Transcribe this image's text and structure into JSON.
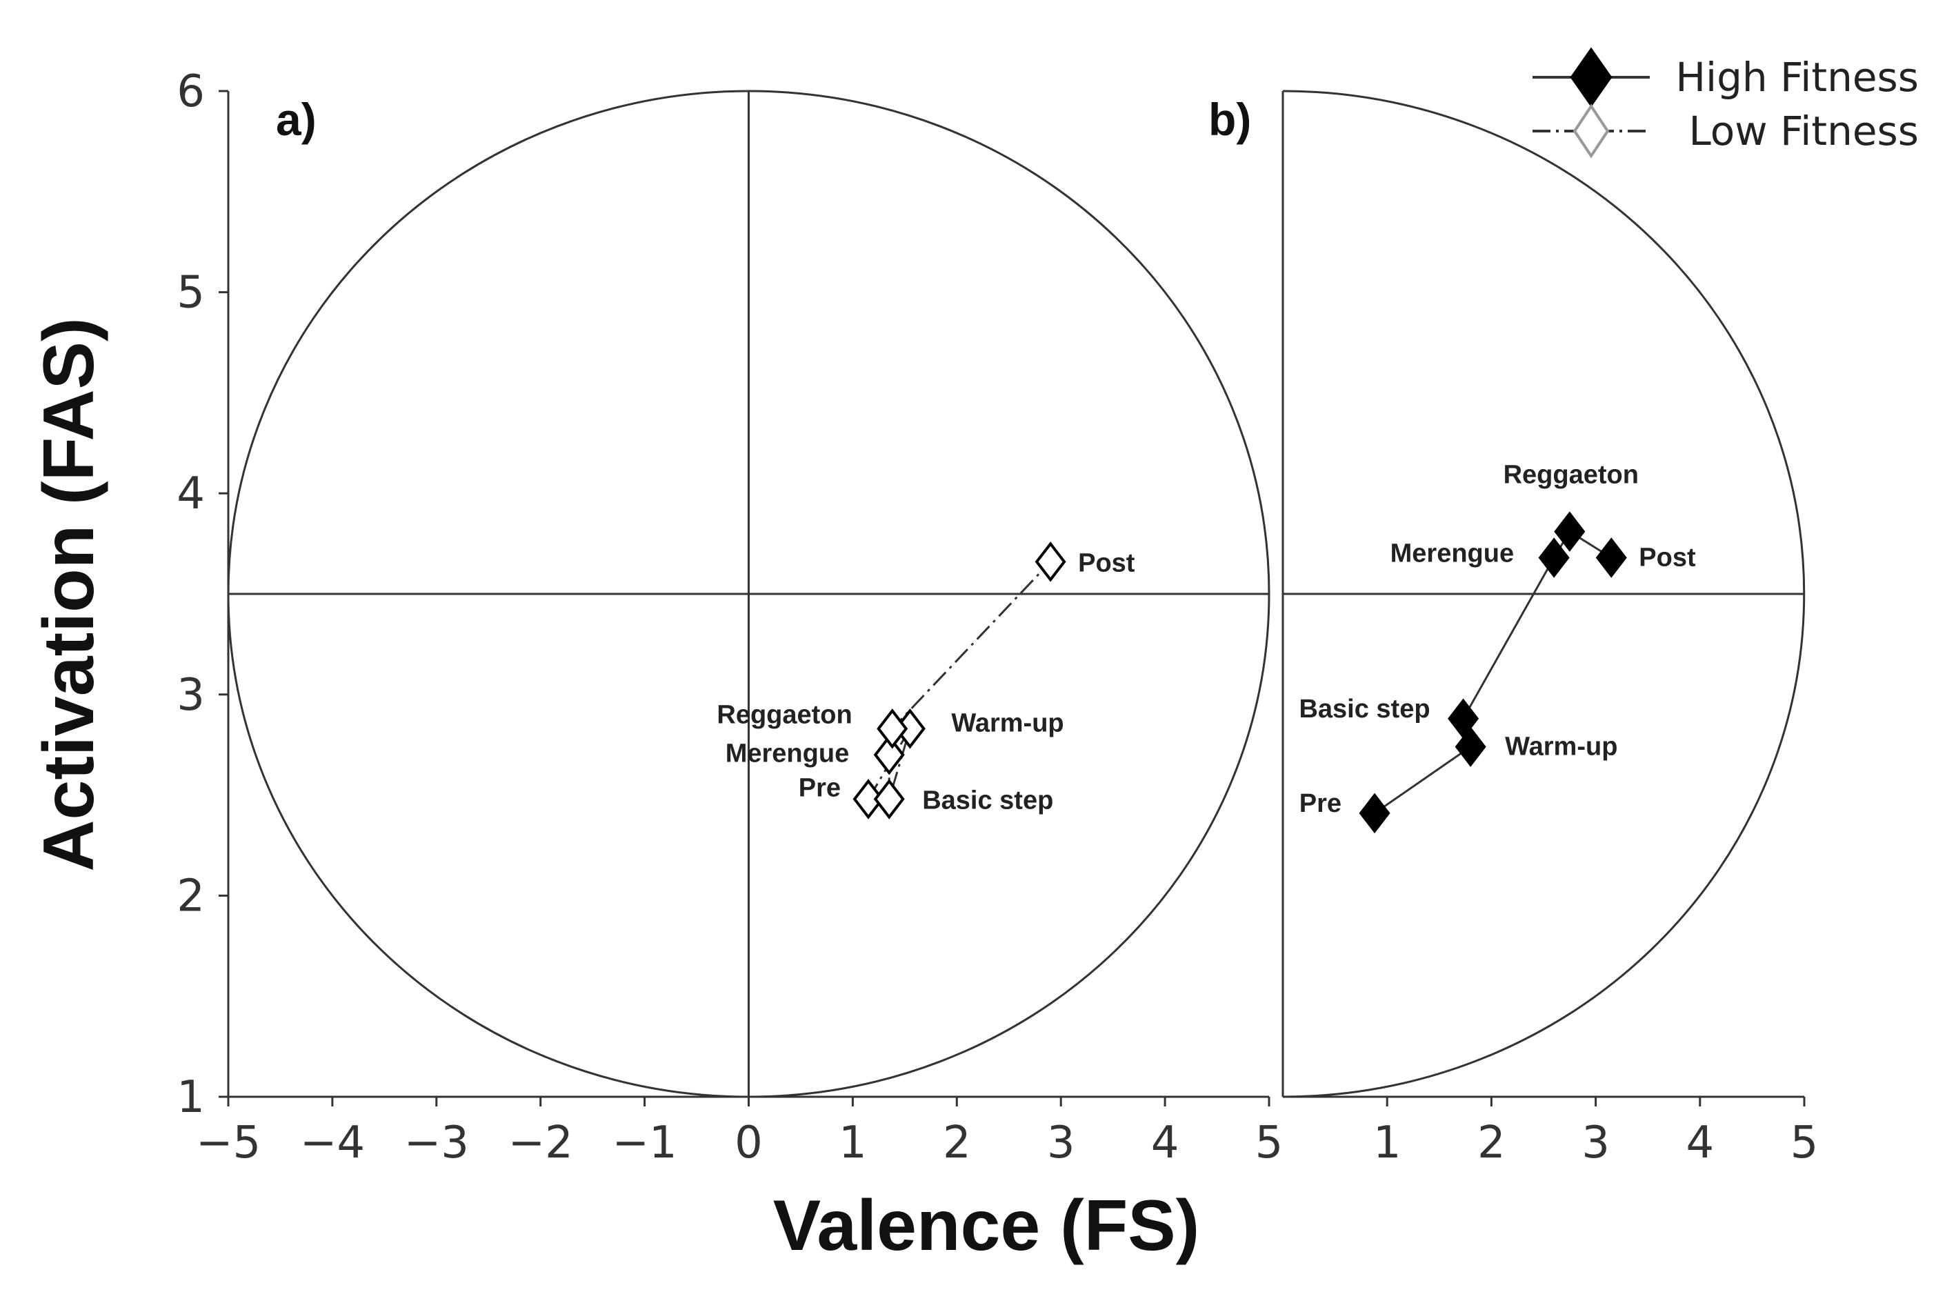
{
  "chart_data": {
    "type": "scatter",
    "xlabel": "Valence (FS)",
    "ylabel": "Activation (FAS)",
    "ylim": [
      1,
      6
    ],
    "yticks": [
      "1",
      "2",
      "3",
      "4",
      "5",
      "6"
    ],
    "grid": false,
    "legend_position": "top-right",
    "legend": [
      {
        "name": "High Fitness",
        "marker": "filled-diamond",
        "line": "solid"
      },
      {
        "name": "Low Fitness",
        "marker": "open-diamond",
        "line": "dash-dot"
      }
    ],
    "panels": [
      {
        "label": "a)",
        "xlim": [
          -5,
          5
        ],
        "xticks": [
          "−5",
          "−4",
          "−3",
          "−2",
          "−1",
          "0",
          "1",
          "2",
          "3",
          "4",
          "5"
        ],
        "circle": {
          "center_x": 0,
          "center_y": 3.5,
          "radius": 5
        },
        "series": [
          {
            "name": "Low Fitness",
            "points": [
              {
                "label": "Pre",
                "x": 1.15,
                "y": 2.48
              },
              {
                "label": "Warm-up",
                "x": 1.55,
                "y": 2.83
              },
              {
                "label": "Basic step",
                "x": 1.35,
                "y": 2.48
              },
              {
                "label": "Merengue",
                "x": 1.35,
                "y": 2.7
              },
              {
                "label": "Reggaeton",
                "x": 1.38,
                "y": 2.83
              },
              {
                "label": "Post",
                "x": 2.9,
                "y": 3.66
              }
            ]
          }
        ]
      },
      {
        "label": "b)",
        "xlim": [
          0,
          5
        ],
        "xticks": [
          "1",
          "2",
          "3",
          "4",
          "5"
        ],
        "circle": {
          "center_x": 0,
          "center_y": 3.5,
          "radius": 5
        },
        "series": [
          {
            "name": "High Fitness",
            "points": [
              {
                "label": "Pre",
                "x": 0.88,
                "y": 2.41
              },
              {
                "label": "Warm-up",
                "x": 1.8,
                "y": 2.74
              },
              {
                "label": "Basic step",
                "x": 1.73,
                "y": 2.88
              },
              {
                "label": "Merengue",
                "x": 2.6,
                "y": 3.68
              },
              {
                "label": "Reggaeton",
                "x": 2.75,
                "y": 3.81
              },
              {
                "label": "Post",
                "x": 3.15,
                "y": 3.68
              }
            ]
          }
        ]
      }
    ]
  }
}
